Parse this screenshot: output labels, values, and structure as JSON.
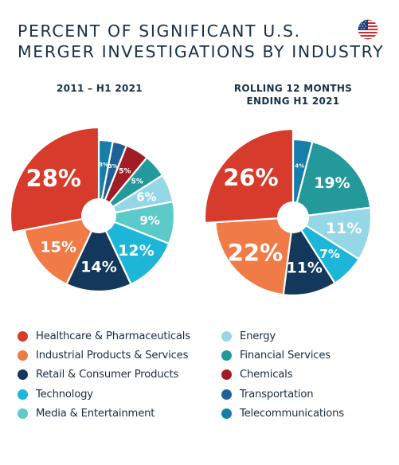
{
  "title_lines": [
    "PERCENT OF SIGNIFICANT U.S.",
    "MERGER INVESTIGATIONS BY INDUSTRY"
  ],
  "flag_icon": "us-flag-icon",
  "colors": {
    "healthcare": "#d63b2b",
    "industrial": "#f07b47",
    "retail": "#13385b",
    "technology": "#1db5d8",
    "media": "#5ccac9",
    "energy": "#95d7e6",
    "financial": "#23999b",
    "chemicals": "#a11c24",
    "transportation": "#1f6196",
    "telecom": "#157ea9"
  },
  "legend": {
    "left": [
      {
        "label": "Healthcare & Pharmaceuticals",
        "key": "healthcare"
      },
      {
        "label": "Industrial Products & Services",
        "key": "industrial"
      },
      {
        "label": "Retail & Consumer Products",
        "key": "retail"
      },
      {
        "label": "Technology",
        "key": "technology"
      },
      {
        "label": "Media & Entertainment",
        "key": "media"
      }
    ],
    "right": [
      {
        "label": "Energy",
        "key": "energy"
      },
      {
        "label": "Financial Services",
        "key": "financial"
      },
      {
        "label": "Chemicals",
        "key": "chemicals"
      },
      {
        "label": "Transportation",
        "key": "transportation"
      },
      {
        "label": "Telecommunications",
        "key": "telecom"
      }
    ]
  },
  "chart_data": [
    {
      "type": "pie",
      "title_lines": [
        "2011 – H1 2021"
      ],
      "slices": [
        {
          "key": "telecom",
          "value": 3,
          "label": "3%"
        },
        {
          "key": "transportation",
          "value": 3,
          "label": "3%"
        },
        {
          "key": "chemicals",
          "value": 5,
          "label": "5%"
        },
        {
          "key": "financial",
          "value": 5,
          "label": "5%"
        },
        {
          "key": "energy",
          "value": 6,
          "label": "6%"
        },
        {
          "key": "media",
          "value": 9,
          "label": "9%"
        },
        {
          "key": "technology",
          "value": 12,
          "label": "12%"
        },
        {
          "key": "retail",
          "value": 14,
          "label": "14%"
        },
        {
          "key": "industrial",
          "value": 15,
          "label": "15%"
        },
        {
          "key": "healthcare",
          "value": 28,
          "label": "28%"
        }
      ]
    },
    {
      "type": "pie",
      "title_lines": [
        "ROLLING 12 MONTHS",
        "ENDING H1 2021"
      ],
      "slices": [
        {
          "key": "telecom",
          "value": 4,
          "label": "4%"
        },
        {
          "key": "financial",
          "value": 19,
          "label": "19%"
        },
        {
          "key": "energy",
          "value": 11,
          "label": "11%"
        },
        {
          "key": "technology",
          "value": 7,
          "label": "7%"
        },
        {
          "key": "retail",
          "value": 11,
          "label": "11%"
        },
        {
          "key": "industrial",
          "value": 22,
          "label": "22%"
        },
        {
          "key": "healthcare",
          "value": 26,
          "label": "26%"
        }
      ]
    }
  ]
}
